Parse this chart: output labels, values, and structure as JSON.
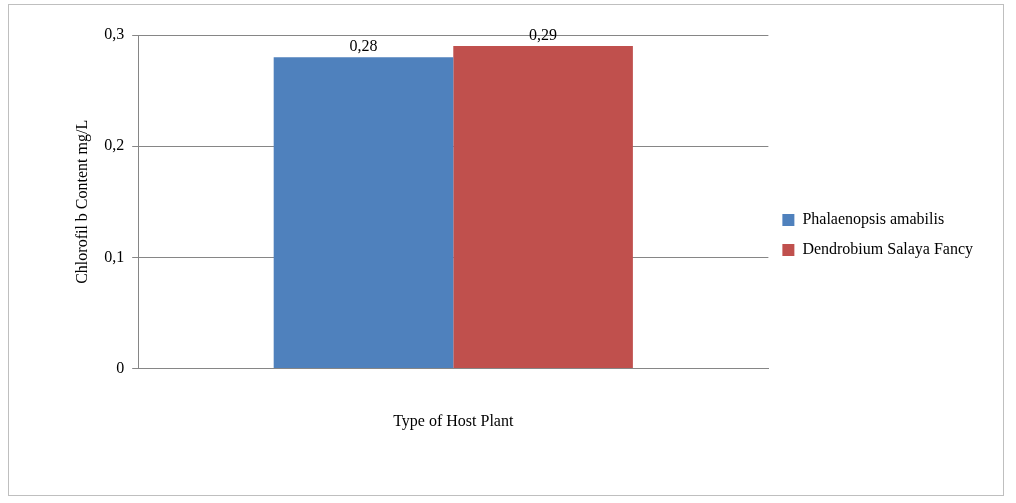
{
  "chart_data": {
    "type": "bar",
    "xlabel": "Type of Host Plant",
    "ylabel": "Chlorofil b Content mg/L",
    "categories": [
      null
    ],
    "series": [
      {
        "name": "Phalaenopsis amabilis",
        "color": "#4f81bd",
        "values": [
          0.28
        ],
        "value_labels": [
          "0,28"
        ]
      },
      {
        "name": "Dendrobium Salaya Fancy",
        "color": "#c0504d",
        "values": [
          0.29
        ],
        "value_labels": [
          "0,29"
        ]
      }
    ],
    "ylim": [
      0,
      0.3
    ],
    "yticks": [
      {
        "value": 0,
        "label": "0"
      },
      {
        "value": 0.1,
        "label": "0,1"
      },
      {
        "value": 0.2,
        "label": "0,2"
      },
      {
        "value": 0.3,
        "label": "0,3"
      }
    ],
    "grid": "y",
    "legend": "right"
  }
}
